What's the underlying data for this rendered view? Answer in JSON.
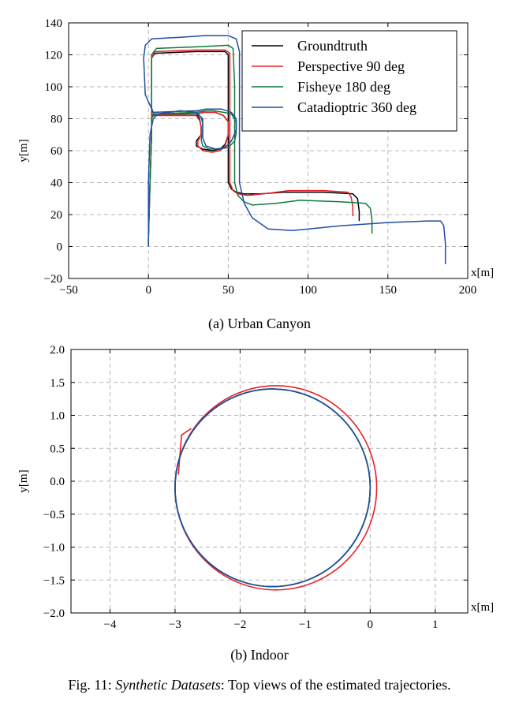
{
  "chart_data": [
    {
      "type": "line",
      "subcaption": "(a) Urban Canyon",
      "xlabel": "x[m]",
      "ylabel": "y[m]",
      "xlim": [
        -50,
        200
      ],
      "ylim": [
        -20,
        140
      ],
      "xticks": [
        -50,
        0,
        50,
        100,
        150,
        200
      ],
      "yticks": [
        -20,
        0,
        20,
        40,
        60,
        80,
        100,
        120,
        140
      ],
      "xtick_labels": [
        "−50",
        "0",
        "50",
        "100",
        "150",
        "200"
      ],
      "ytick_labels": [
        "−20",
        "0",
        "20",
        "40",
        "60",
        "80",
        "100",
        "120",
        "140"
      ],
      "grid": true,
      "legend_position": "top-right",
      "series": [
        {
          "name": "Groundtruth",
          "color": "#000000",
          "x": [
            0,
            0,
            1,
            2,
            2,
            2,
            4,
            30,
            32,
            33,
            33,
            30,
            30,
            34,
            40,
            45,
            48,
            50,
            50,
            47,
            42,
            38,
            35,
            30,
            2,
            2,
            2,
            4,
            30,
            48,
            50,
            50,
            50,
            52,
            55,
            60,
            70,
            85,
            110,
            128,
            131,
            132,
            132
          ],
          "y": [
            0,
            5,
            40,
            70,
            80,
            82,
            83,
            83,
            80,
            75,
            70,
            66,
            63,
            61,
            60,
            61,
            64,
            70,
            78,
            82,
            84,
            84,
            84,
            83,
            82,
            86,
            118,
            121,
            122,
            122,
            120,
            100,
            40,
            36,
            34,
            33,
            33,
            34,
            34,
            33,
            30,
            22,
            16
          ]
        },
        {
          "name": "Perspective 90 deg",
          "color": "#e8202a",
          "x": [
            0,
            0,
            1,
            2,
            2,
            2,
            4,
            30,
            32,
            33,
            33,
            31,
            31,
            34,
            40,
            45,
            48,
            50,
            50,
            47,
            42,
            38,
            35,
            30,
            2,
            2,
            2,
            4,
            30,
            48,
            51,
            51,
            51,
            53,
            56,
            62,
            72,
            88,
            110,
            125,
            127,
            128,
            128
          ],
          "y": [
            0,
            5,
            40,
            70,
            80,
            82,
            82,
            82,
            79,
            75,
            70,
            66,
            63,
            60,
            59,
            60,
            63,
            70,
            78,
            82,
            84,
            84,
            84,
            83,
            82,
            86,
            118,
            122,
            123,
            123,
            121,
            100,
            40,
            35,
            33,
            32,
            33,
            35,
            35,
            34,
            31,
            25,
            19
          ]
        },
        {
          "name": "Fisheye 180 deg",
          "color": "#0c7a3c",
          "x": [
            0,
            0,
            1,
            2,
            2,
            3,
            5,
            30,
            33,
            34,
            34,
            33,
            34,
            38,
            44,
            50,
            54,
            55,
            55,
            52,
            47,
            41,
            36,
            30,
            3,
            2,
            2,
            5,
            30,
            50,
            53,
            54,
            54,
            56,
            60,
            65,
            80,
            95,
            120,
            136,
            139,
            140,
            140
          ],
          "y": [
            0,
            5,
            40,
            70,
            80,
            82,
            83,
            83,
            81,
            77,
            72,
            67,
            63,
            61,
            61,
            62,
            66,
            71,
            78,
            83,
            84,
            85,
            85,
            84,
            83,
            87,
            120,
            124,
            125,
            126,
            124,
            100,
            40,
            32,
            28,
            26,
            27,
            29,
            28,
            27,
            24,
            17,
            8
          ]
        },
        {
          "name": "Catadioptric 360 deg",
          "color": "#1f4ea3",
          "x": [
            0,
            0,
            0,
            1,
            3,
            6,
            20,
            30,
            34,
            34,
            34,
            36,
            42,
            48,
            52,
            55,
            55,
            52,
            46,
            40,
            36,
            30,
            3,
            -2,
            -3,
            -2,
            2,
            20,
            35,
            50,
            55,
            57,
            57,
            57,
            60,
            65,
            75,
            90,
            120,
            150,
            175,
            183,
            185,
            186,
            186
          ],
          "y": [
            0,
            5,
            40,
            70,
            80,
            83,
            85,
            84,
            80,
            75,
            68,
            63,
            61,
            62,
            66,
            73,
            80,
            84,
            86,
            86,
            86,
            85,
            84,
            95,
            118,
            126,
            130,
            131,
            132,
            132,
            130,
            122,
            100,
            40,
            27,
            18,
            11,
            10,
            13,
            15,
            16,
            16,
            13,
            2,
            -11
          ]
        }
      ]
    },
    {
      "type": "line",
      "subcaption": "(b) Indoor",
      "xlabel": "x[m]",
      "ylabel": "y[m]",
      "xlim": [
        -4.6,
        1.5
      ],
      "ylim": [
        -2.0,
        2.0
      ],
      "xticks": [
        -4,
        -3,
        -2,
        -1,
        0,
        1
      ],
      "yticks": [
        -2.0,
        -1.5,
        -1.0,
        -0.5,
        0.0,
        0.5,
        1.0,
        1.5,
        2.0
      ],
      "xtick_labels": [
        "−4",
        "−3",
        "−2",
        "−1",
        "0",
        "1"
      ],
      "ytick_labels": [
        "−2.0",
        "−1.5",
        "−1.0",
        "−0.5",
        "0.0",
        "0.5",
        "1.0",
        "1.5",
        "2.0"
      ],
      "grid": true,
      "series": [
        {
          "color": "#000000",
          "shape": "circle",
          "center": [
            -1.5,
            -0.1
          ],
          "radius": [
            1.5,
            1.5
          ]
        },
        {
          "color": "#e8202a",
          "shape": "circle",
          "center": [
            -1.45,
            -0.1
          ],
          "radius": [
            1.55,
            1.55
          ],
          "start_kink": [
            [
              -2.95,
              0.1
            ],
            [
              -2.9,
              0.7
            ],
            [
              -2.75,
              0.8
            ]
          ]
        },
        {
          "color": "#0c7a3c",
          "shape": "circle",
          "center": [
            -1.5,
            -0.1
          ],
          "radius": [
            1.5,
            1.5
          ]
        },
        {
          "color": "#1f4ea3",
          "shape": "circle",
          "center": [
            -1.5,
            -0.1
          ],
          "radius": [
            1.5,
            1.5
          ]
        }
      ]
    }
  ],
  "figure_caption": {
    "prefix": "Fig. 11: ",
    "emphasis": "Synthetic Datasets",
    "suffix": ": Top views of the estimated trajectories."
  }
}
